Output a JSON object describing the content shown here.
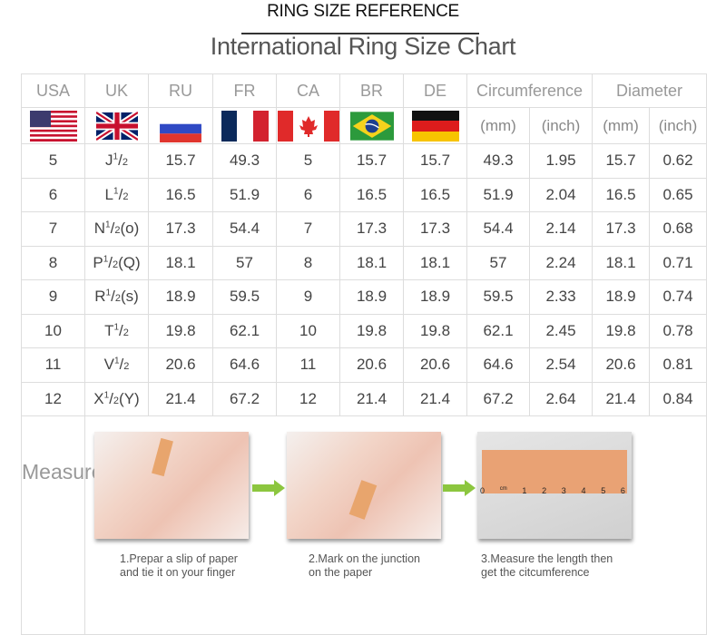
{
  "header": {
    "reference": "RING SIZE REFERENCE",
    "title": "International Ring Size Chart"
  },
  "columns": [
    "USA",
    "UK",
    "RU",
    "FR",
    "CA",
    "BR",
    "DE",
    "Circumference",
    "Diameter"
  ],
  "units": {
    "circ_mm": "(mm)",
    "circ_inch": "(inch)",
    "dia_mm": "(mm)",
    "dia_inch": "(inch)"
  },
  "flags": [
    "us-flag",
    "uk-flag",
    "russia-flag",
    "france-flag",
    "canada-flag",
    "brazil-flag",
    "germany-flag"
  ],
  "rows": [
    {
      "usa": "5",
      "uk": "J",
      "uk_suffix": "",
      "ru": "15.7",
      "fr": "49.3",
      "ca": "5",
      "br": "15.7",
      "de": "15.7",
      "cmm": "49.3",
      "cin": "1.95",
      "dmm": "15.7",
      "din": "0.62"
    },
    {
      "usa": "6",
      "uk": "L",
      "uk_suffix": "",
      "ru": "16.5",
      "fr": "51.9",
      "ca": "6",
      "br": "16.5",
      "de": "16.5",
      "cmm": "51.9",
      "cin": "2.04",
      "dmm": "16.5",
      "din": "0.65"
    },
    {
      "usa": "7",
      "uk": "N",
      "uk_suffix": "(o)",
      "ru": "17.3",
      "fr": "54.4",
      "ca": "7",
      "br": "17.3",
      "de": "17.3",
      "cmm": "54.4",
      "cin": "2.14",
      "dmm": "17.3",
      "din": "0.68"
    },
    {
      "usa": "8",
      "uk": "P",
      "uk_suffix": "(Q)",
      "ru": "18.1",
      "fr": "57",
      "ca": "8",
      "br": "18.1",
      "de": "18.1",
      "cmm": "57",
      "cin": "2.24",
      "dmm": "18.1",
      "din": "0.71"
    },
    {
      "usa": "9",
      "uk": "R",
      "uk_suffix": "(s)",
      "ru": "18.9",
      "fr": "59.5",
      "ca": "9",
      "br": "18.9",
      "de": "18.9",
      "cmm": "59.5",
      "cin": "2.33",
      "dmm": "18.9",
      "din": "0.74"
    },
    {
      "usa": "10",
      "uk": "T",
      "uk_suffix": "",
      "ru": "19.8",
      "fr": "62.1",
      "ca": "10",
      "br": "19.8",
      "de": "19.8",
      "cmm": "62.1",
      "cin": "2.45",
      "dmm": "19.8",
      "din": "0.78"
    },
    {
      "usa": "11",
      "uk": "V",
      "uk_suffix": "",
      "ru": "20.6",
      "fr": "64.6",
      "ca": "11",
      "br": "20.6",
      "de": "20.6",
      "cmm": "64.6",
      "cin": "2.54",
      "dmm": "20.6",
      "din": "0.81"
    },
    {
      "usa": "12",
      "uk": "X",
      "uk_suffix": "(Y)",
      "ru": "21.4",
      "fr": "67.2",
      "ca": "12",
      "br": "21.4",
      "de": "21.4",
      "cmm": "67.2",
      "cin": "2.64",
      "dmm": "21.4",
      "din": "0.84"
    }
  ],
  "half": {
    "num": "1",
    "den": "2"
  },
  "measure": {
    "label": "Measure",
    "ruler_labels": [
      "0",
      "cm",
      "1",
      "2",
      "3",
      "4",
      "5",
      "6"
    ],
    "steps": [
      {
        "line1": "1.Prepar a slip of paper",
        "line2": "and tie it on your finger"
      },
      {
        "line1": "2.Mark on the junction",
        "line2": "on the paper"
      },
      {
        "line1": "3.Measure the length then",
        "line2": "get the citcumference"
      }
    ]
  },
  "colors": {
    "arrow": "#8cc63f",
    "border": "#dddddd",
    "paper": "#e8a56d"
  }
}
